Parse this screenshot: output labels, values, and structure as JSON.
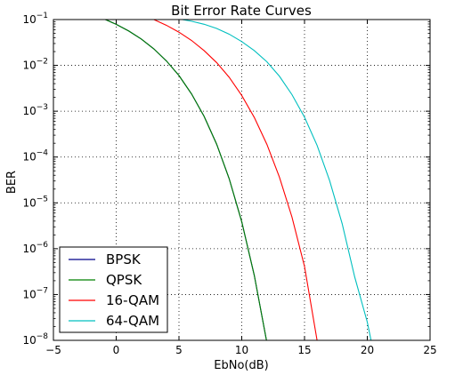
{
  "chart_data": {
    "type": "line",
    "title": "Bit Error Rate Curves",
    "xlabel": "EbNo(dB)",
    "ylabel": "BER",
    "xlim": [
      -5,
      25
    ],
    "ylim": [
      1e-08,
      0.1
    ],
    "yscale": "log",
    "grid": true,
    "legend_placement": "lower-left",
    "x_ticks": [
      -5,
      0,
      5,
      10,
      15,
      20,
      25
    ],
    "x_tick_labels": [
      "−5",
      "0",
      "5",
      "10",
      "15",
      "20",
      "25"
    ],
    "y_tick_exponents": [
      -1,
      -2,
      -3,
      -4,
      -5,
      -6,
      -7,
      -8
    ],
    "y_tick_base": "10",
    "series": [
      {
        "name": "BPSK",
        "color": "#00008b",
        "x": [
          -1,
          0,
          1,
          2,
          3,
          4,
          5,
          6,
          7,
          8,
          9,
          10,
          11,
          12
        ],
        "y": [
          0.104,
          0.0786,
          0.0563,
          0.0375,
          0.0229,
          0.0125,
          0.006,
          0.00239,
          0.000773,
          0.000191,
          3.36e-05,
          3.87e-06,
          2.61e-07,
          9e-09
        ]
      },
      {
        "name": "QPSK",
        "color": "#008000",
        "x": [
          -1,
          0,
          1,
          2,
          3,
          4,
          5,
          6,
          7,
          8,
          9,
          10,
          11,
          12
        ],
        "y": [
          0.104,
          0.0786,
          0.0563,
          0.0375,
          0.0229,
          0.0125,
          0.006,
          0.00239,
          0.000773,
          0.000191,
          3.36e-05,
          3.87e-06,
          2.61e-07,
          9e-09
        ]
      },
      {
        "name": "16-QAM",
        "color": "#ff0000",
        "x": [
          3,
          4,
          5,
          6,
          7,
          8,
          9,
          10,
          11,
          12,
          13,
          14,
          15,
          16
        ],
        "y": [
          0.1,
          0.075,
          0.053,
          0.035,
          0.021,
          0.0115,
          0.0055,
          0.0022,
          0.00073,
          0.00019,
          3.65e-05,
          4.9e-06,
          4.1e-07,
          1e-08
        ]
      },
      {
        "name": "64-QAM",
        "color": "#00bfbf",
        "x": [
          5,
          6,
          7,
          8,
          9,
          10,
          11,
          12,
          13,
          14,
          15,
          16,
          17,
          18,
          19,
          20,
          20.3
        ],
        "y": [
          0.103,
          0.092,
          0.079,
          0.064,
          0.048,
          0.033,
          0.021,
          0.012,
          0.0058,
          0.0023,
          0.00074,
          0.00018,
          3.05e-05,
          3.5e-06,
          2.4e-07,
          2.5e-08,
          1e-08
        ]
      }
    ]
  }
}
